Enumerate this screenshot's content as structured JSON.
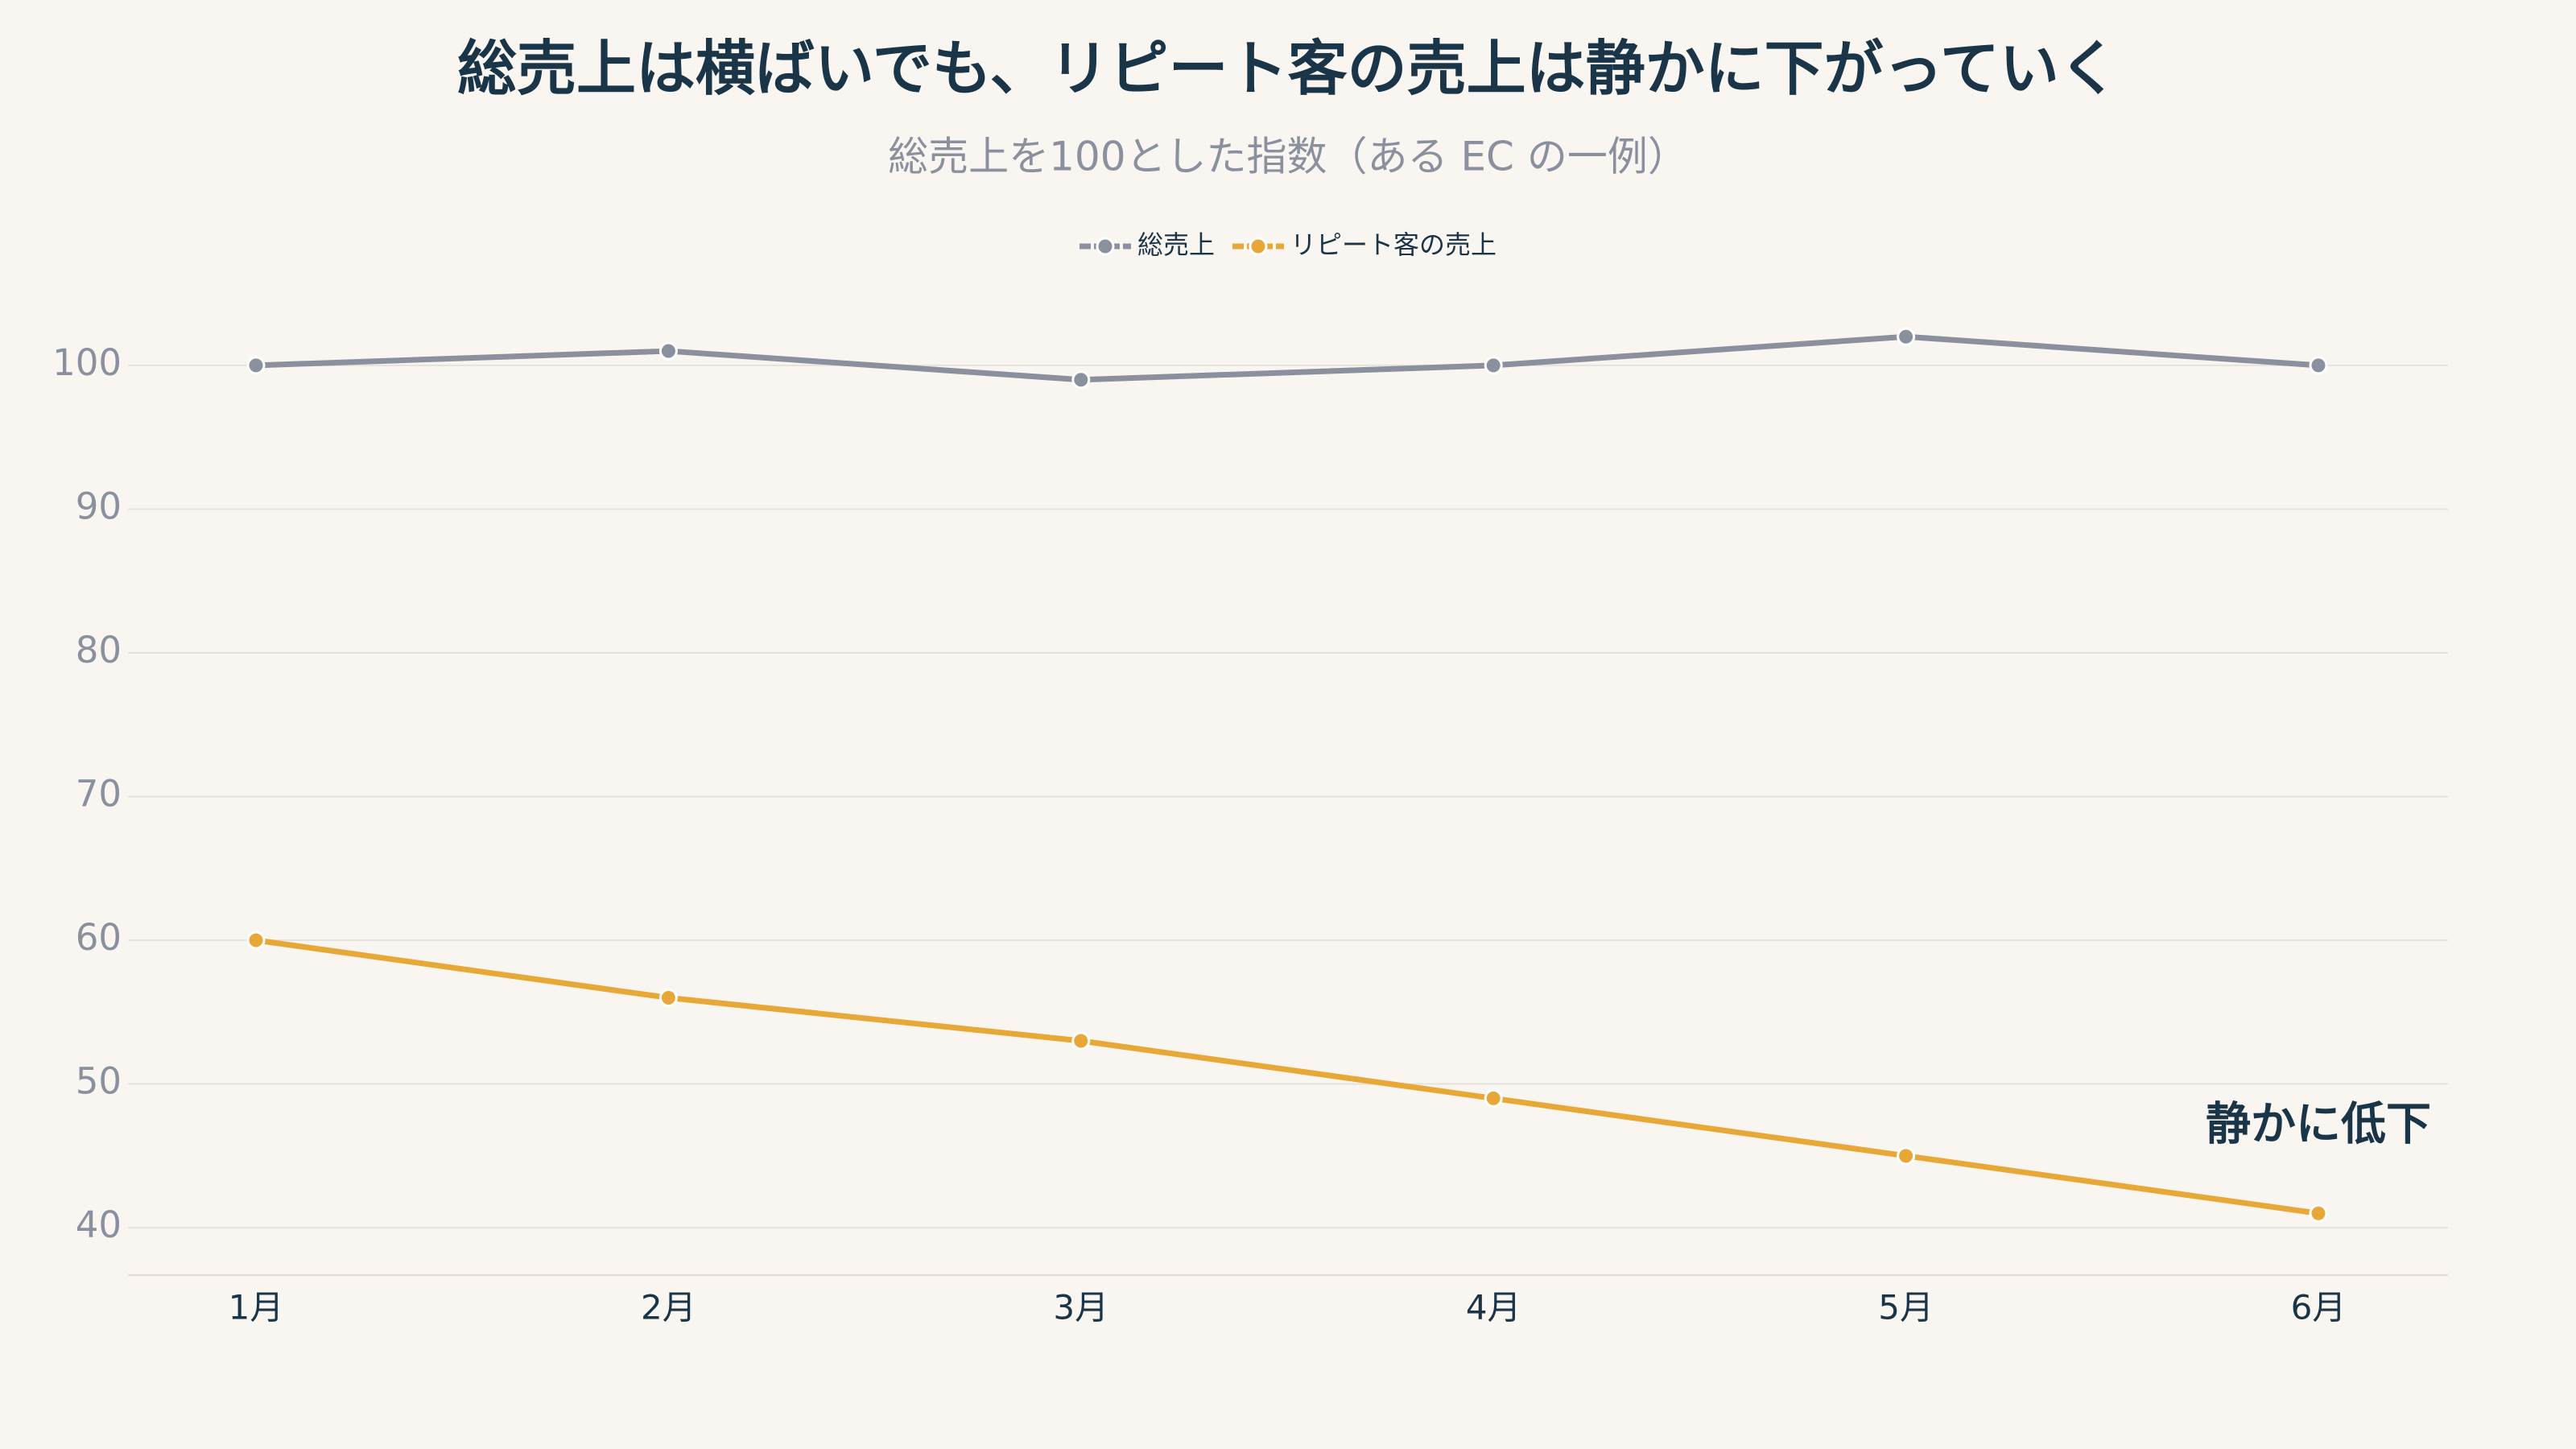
{
  "chart_data": {
    "type": "line",
    "title": "総売上は横ばいでも、リピート客の売上は静かに下がっていく",
    "subtitle": "総売上を100とした指数（ある EC の一例）",
    "categories": [
      "1月",
      "2月",
      "3月",
      "4月",
      "5月",
      "6月"
    ],
    "series": [
      {
        "name": "総売上",
        "color": "#8a909e",
        "values": [
          100,
          101,
          99,
          100,
          102,
          100
        ]
      },
      {
        "name": "リピート客の売上",
        "color": "#e8a838",
        "values": [
          60,
          56,
          53,
          49,
          45,
          41
        ]
      }
    ],
    "annotation": "静かに低下",
    "ylim": [
      36.7,
      103.3
    ],
    "yticks": [
      40,
      50,
      60,
      70,
      80,
      90,
      100
    ],
    "grid": true,
    "legend": "top"
  }
}
